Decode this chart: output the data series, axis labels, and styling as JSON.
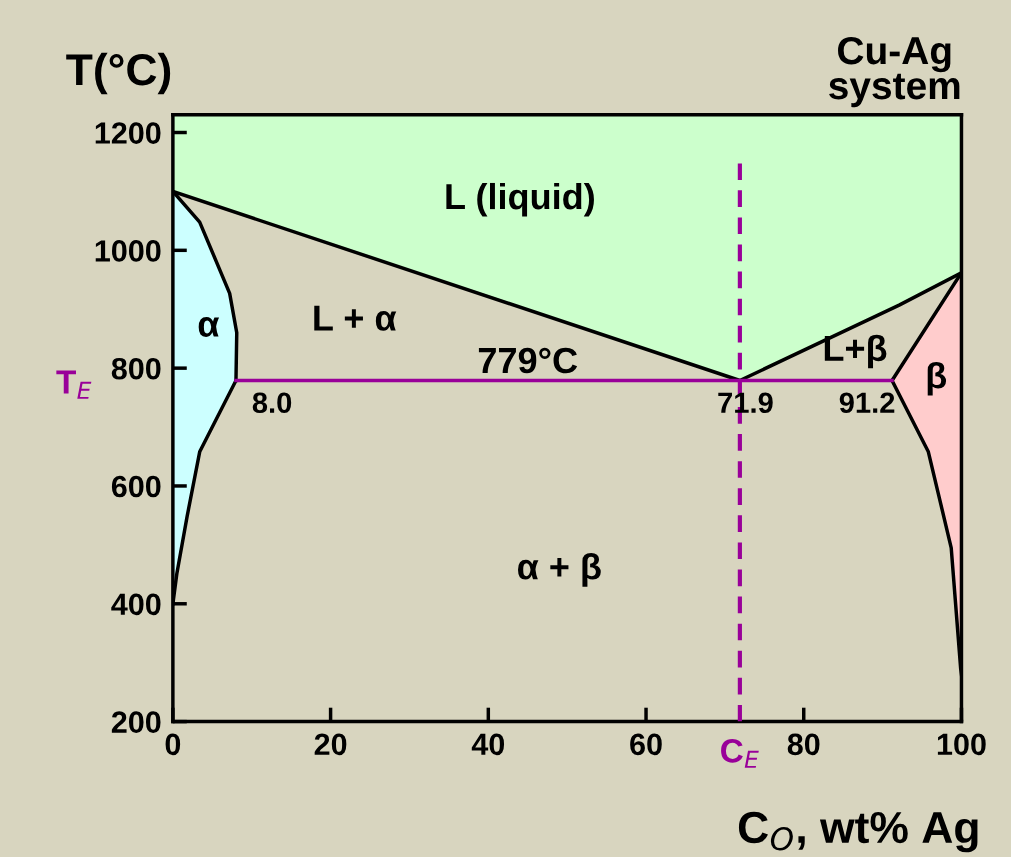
{
  "chart_data": {
    "type": "line",
    "title": "Cu-Ag\nsystem",
    "xlabel": "C$_{O}$, wt% Ag",
    "ylabel": "T(°C)",
    "xlim": [
      0,
      100
    ],
    "xticks": [
      0,
      20,
      40,
      60,
      80,
      100
    ],
    "ylim": [
      200,
      1230
    ],
    "yticks": [
      200,
      400,
      600,
      800,
      1000,
      1200
    ],
    "grid": false,
    "legend": false,
    "marker": "none",
    "series": [
      {
        "color": "#000000",
        "x": [
          0,
          71.9,
          92.1,
          100
        ],
        "values": [
          1100,
          779,
          907,
          962
        ]
      },
      {
        "color": "#000000",
        "x": [
          0,
          3.4,
          7.2,
          8.1,
          8.0
        ],
        "values": [
          1100,
          1048,
          927,
          860,
          779
        ]
      },
      {
        "color": "#000000",
        "x": [
          8.0,
          3.4,
          1.8,
          0.5,
          0
        ],
        "values": [
          779,
          658,
          548,
          451,
          400
        ]
      },
      {
        "color": "#000000",
        "x": [
          91.2,
          100
        ],
        "values": [
          779,
          962
        ]
      },
      {
        "color": "#000000",
        "x": [
          91.2,
          95.8,
          98.7,
          99.9,
          100
        ],
        "values": [
          779,
          658,
          495,
          290,
          280
        ]
      },
      {
        "color": "#990099",
        "x": [
          8.0,
          71.9,
          91.2
        ],
        "values": [
          779,
          779,
          779
        ]
      }
    ],
    "ref_lines": [
      {
        "axis": "x",
        "value": 71.9,
        "label": "C$_{E}$",
        "color": "#990099",
        "line_style": "dashed"
      }
    ],
    "annotations": [
      "L (liquid)",
      "α",
      "L + α",
      "779°C",
      "L+β",
      "β",
      "α + β",
      {
        "text": "8.0",
        "x": 8.0,
        "y": 779
      },
      {
        "text": "71.9",
        "x": 71.9,
        "y": 779
      },
      {
        "text": "91.2",
        "x": 91.2,
        "y": 779
      },
      "T$_{E}$"
    ]
  }
}
